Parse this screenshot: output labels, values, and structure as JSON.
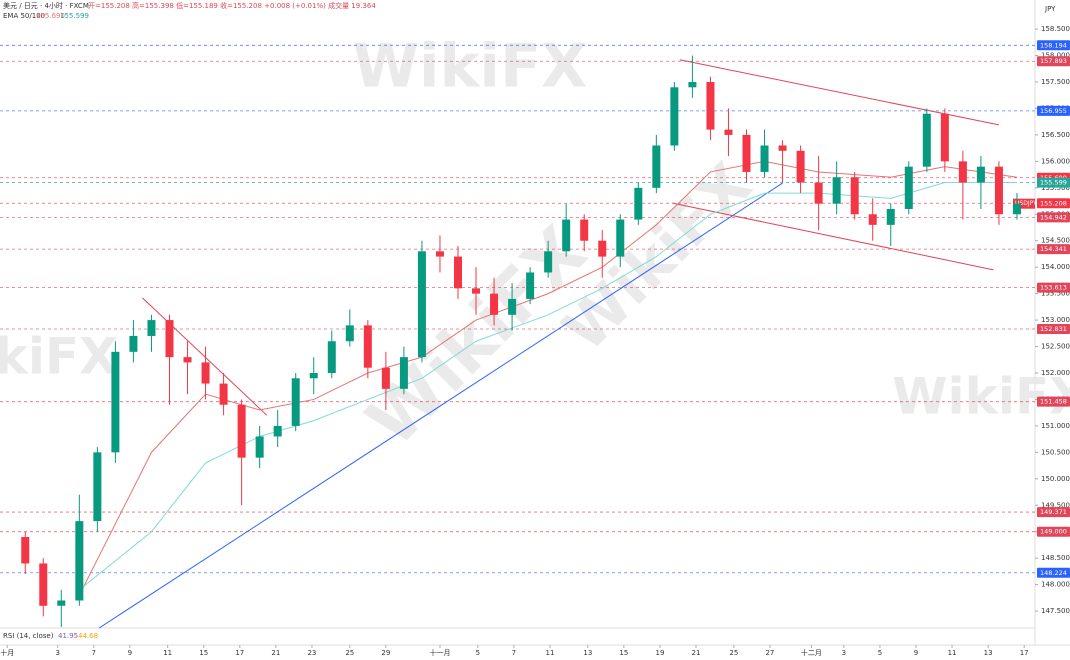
{
  "chart_data": {
    "type": "candlestick",
    "header": "美元 / 日元 · 4小时 · FXCM",
    "ohlc_text": "开=155.208 高=155.398 低=155.189 收=155.208 +0.008 (+0.01%) 成交量 19.364",
    "ema_label": "EMA 50/100",
    "ema_values_text": [
      {
        "value": 155.69,
        "label": "155.690"
      },
      {
        "value": 155.599,
        "label": "155.599"
      }
    ],
    "currency": "JPY",
    "watermark": "WikiFX",
    "symbol_label": "USDJPY",
    "up_color": "#089981",
    "down_color": "#f23645",
    "x": [
      1,
      2,
      3,
      4,
      5,
      6,
      7,
      8,
      9,
      10,
      11,
      12,
      13,
      14,
      15,
      16,
      17,
      18,
      19,
      20,
      21,
      22,
      23,
      24,
      25,
      26,
      27,
      28,
      29,
      30,
      31,
      32,
      33,
      34,
      35,
      36,
      37,
      38,
      39,
      40,
      41,
      42,
      43,
      44,
      45,
      46,
      47,
      48,
      49,
      50,
      51,
      52,
      53,
      54,
      55,
      56
    ],
    "open": [
      148.9,
      148.4,
      147.6,
      147.7,
      149.2,
      150.5,
      152.4,
      152.7,
      153.0,
      152.3,
      152.2,
      151.8,
      151.4,
      150.4,
      150.8,
      151.0,
      151.9,
      152.0,
      152.6,
      152.9,
      152.1,
      151.7,
      152.3,
      154.3,
      154.2,
      153.6,
      153.5,
      153.1,
      153.4,
      153.9,
      154.3,
      154.9,
      154.5,
      154.2,
      154.9,
      155.5,
      156.3,
      157.4,
      157.5,
      156.6,
      156.5,
      155.8,
      156.3,
      156.2,
      155.6,
      155.2,
      155.7,
      155.0,
      154.8,
      155.1,
      155.9,
      156.9,
      156.0,
      155.6,
      155.9,
      155.0
    ],
    "high": [
      149.0,
      148.5,
      147.9,
      149.7,
      150.6,
      152.6,
      153.0,
      153.1,
      153.1,
      152.6,
      152.5,
      152.0,
      151.5,
      151.0,
      151.3,
      152.0,
      152.3,
      152.8,
      153.2,
      153.0,
      152.4,
      152.5,
      154.5,
      154.6,
      154.4,
      154.0,
      153.8,
      153.7,
      154.0,
      154.5,
      155.2,
      155.0,
      154.7,
      155.0,
      155.6,
      156.5,
      157.5,
      158.0,
      157.6,
      157.0,
      156.6,
      156.6,
      156.4,
      156.3,
      156.1,
      156.0,
      155.8,
      155.3,
      155.2,
      156.0,
      157.0,
      157.0,
      156.2,
      156.1,
      156.0,
      155.4
    ],
    "low": [
      148.2,
      147.4,
      147.2,
      147.6,
      149.0,
      150.3,
      152.2,
      152.4,
      151.4,
      151.6,
      151.5,
      151.2,
      149.5,
      150.2,
      150.6,
      150.9,
      151.6,
      151.9,
      152.5,
      151.9,
      151.3,
      151.6,
      152.2,
      153.9,
      153.4,
      153.1,
      152.9,
      152.8,
      153.3,
      153.8,
      154.2,
      154.3,
      153.8,
      154.0,
      154.8,
      155.4,
      156.2,
      157.2,
      156.4,
      156.1,
      155.6,
      155.7,
      155.6,
      155.4,
      154.7,
      155.0,
      154.9,
      154.5,
      154.4,
      155.0,
      155.8,
      155.8,
      154.9,
      155.1,
      154.8,
      154.9
    ],
    "close": [
      148.4,
      147.6,
      147.7,
      149.2,
      150.5,
      152.4,
      152.7,
      153.0,
      152.3,
      152.2,
      151.8,
      151.4,
      150.4,
      150.8,
      151.0,
      151.9,
      152.0,
      152.6,
      152.9,
      152.1,
      151.7,
      152.3,
      154.3,
      154.2,
      153.6,
      153.5,
      153.1,
      153.4,
      153.9,
      154.3,
      154.9,
      154.5,
      154.2,
      154.9,
      155.5,
      156.3,
      157.4,
      157.5,
      156.6,
      156.5,
      155.8,
      156.3,
      156.2,
      155.6,
      155.2,
      155.7,
      155.0,
      154.8,
      155.1,
      155.9,
      156.9,
      156.0,
      155.6,
      155.9,
      155.0,
      155.2
    ],
    "ema": [
      {
        "color": "#e57373",
        "x": [
          4,
          8,
          11,
          14,
          17,
          20,
          23,
          26,
          30,
          33,
          36,
          39,
          42,
          45,
          49,
          52,
          56
        ],
        "values": [
          147.8,
          150.5,
          151.6,
          151.3,
          151.5,
          152.0,
          152.3,
          153.0,
          153.5,
          154.0,
          154.8,
          155.8,
          156.0,
          155.8,
          155.7,
          155.9,
          155.7
        ]
      },
      {
        "color": "#7fdbd4",
        "x": [
          4,
          8,
          11,
          14,
          17,
          20,
          23,
          26,
          30,
          33,
          36,
          39,
          42,
          45,
          49,
          52,
          56
        ],
        "values": [
          147.9,
          149.0,
          150.3,
          150.8,
          151.1,
          151.5,
          151.9,
          152.6,
          153.1,
          153.6,
          154.2,
          155.0,
          155.4,
          155.4,
          155.3,
          155.6,
          155.6
        ]
      }
    ],
    "trendlines": [
      {
        "color": "#2962ff",
        "x": [
          5.1,
          43.0
        ],
        "y": [
          147.18,
          155.59
        ]
      },
      {
        "color": "#e0455a",
        "x": [
          37.3,
          55.0
        ],
        "y": [
          157.92,
          156.69
        ]
      },
      {
        "color": "#e0455a",
        "x": [
          36.9,
          54.7
        ],
        "y": [
          155.21,
          153.95
        ]
      },
      {
        "color": "#e0455a",
        "x": [
          7.5,
          14.4
        ],
        "y": [
          153.42,
          151.2
        ]
      }
    ],
    "levels": [
      {
        "value": 158.194,
        "label": "158.194",
        "color": "#2962ff"
      },
      {
        "value": 157.893,
        "label": "157.893",
        "color": "#e0455a"
      },
      {
        "value": 156.955,
        "label": "156.955",
        "color": "#2962ff"
      },
      {
        "value": 155.69,
        "label": "155.690",
        "color": "#f23645"
      },
      {
        "value": 155.599,
        "label": "155.599",
        "color": "#26a69a"
      },
      {
        "value": 155.208,
        "label": "155.208",
        "color": "#f23645"
      },
      {
        "value": 154.942,
        "label": "154.942",
        "color": "#e0455a"
      },
      {
        "value": 154.341,
        "label": "154.341",
        "color": "#e0455a"
      },
      {
        "value": 153.613,
        "label": "153.613",
        "color": "#e0455a"
      },
      {
        "value": 152.831,
        "label": "152.831",
        "color": "#e0455a"
      },
      {
        "value": 151.458,
        "label": "151.458",
        "color": "#e0455a"
      },
      {
        "value": 149.371,
        "label": "149.371",
        "color": "#e0455a"
      },
      {
        "value": 149.0,
        "label": "149.000",
        "color": "#e0455a"
      },
      {
        "value": 148.224,
        "label": "148.224",
        "color": "#2962ff"
      }
    ],
    "rsi_label": "RSI (14, close)",
    "rsi_values": [
      41.95,
      44.68
    ],
    "xlim": [
      -0.4,
      57
    ],
    "ylim": [
      147.18,
      159.05
    ],
    "xticks": [
      {
        "value": 0,
        "label": "十月"
      },
      {
        "value": 2.8,
        "label": "3"
      },
      {
        "value": 4.8,
        "label": "7"
      },
      {
        "value": 6.8,
        "label": "9"
      },
      {
        "value": 8.9,
        "label": "11"
      },
      {
        "value": 10.9,
        "label": "15"
      },
      {
        "value": 12.9,
        "label": "17"
      },
      {
        "value": 14.9,
        "label": "21"
      },
      {
        "value": 16.9,
        "label": "23"
      },
      {
        "value": 19.0,
        "label": "25"
      },
      {
        "value": 21.0,
        "label": "29"
      },
      {
        "value": 24.0,
        "label": "十一月"
      },
      {
        "value": 26.1,
        "label": "5"
      },
      {
        "value": 28.1,
        "label": "7"
      },
      {
        "value": 30.1,
        "label": "11"
      },
      {
        "value": 32.2,
        "label": "13"
      },
      {
        "value": 34.2,
        "label": "15"
      },
      {
        "value": 36.2,
        "label": "19"
      },
      {
        "value": 38.2,
        "label": "21"
      },
      {
        "value": 40.3,
        "label": "25"
      },
      {
        "value": 42.3,
        "label": "27"
      },
      {
        "value": 44.6,
        "label": "十二月"
      },
      {
        "value": 46.4,
        "label": "3"
      },
      {
        "value": 48.4,
        "label": "5"
      },
      {
        "value": 50.4,
        "label": "9"
      },
      {
        "value": 52.4,
        "label": "11"
      },
      {
        "value": 54.4,
        "label": "13"
      },
      {
        "value": 56.4,
        "label": "17"
      }
    ],
    "yticks": [
      {
        "value": 147.5,
        "label": "147.500"
      },
      {
        "value": 148,
        "label": "148.000"
      },
      {
        "value": 148.5,
        "label": "148.500"
      },
      {
        "value": 149,
        "label": "149.000"
      },
      {
        "value": 149.5,
        "label": "149.500"
      },
      {
        "value": 150,
        "label": "150.000"
      },
      {
        "value": 150.5,
        "label": "150.500"
      },
      {
        "value": 151,
        "label": "151.000"
      },
      {
        "value": 151.5,
        "label": "151.500"
      },
      {
        "value": 152,
        "label": "152.000"
      },
      {
        "value": 152.5,
        "label": "152.500"
      },
      {
        "value": 153,
        "label": "153.000"
      },
      {
        "value": 153.5,
        "label": "153.500"
      },
      {
        "value": 154,
        "label": "154.000"
      },
      {
        "value": 154.5,
        "label": "154.500"
      },
      {
        "value": 155,
        "label": "155.000"
      },
      {
        "value": 155.5,
        "label": "155.500"
      },
      {
        "value": 156,
        "label": "156.000"
      },
      {
        "value": 156.5,
        "label": "156.500"
      },
      {
        "value": 157,
        "label": "157.000"
      },
      {
        "value": 157.5,
        "label": "157.500"
      },
      {
        "value": 158,
        "label": "158.000"
      },
      {
        "value": 158.5,
        "label": "158.500"
      }
    ]
  }
}
